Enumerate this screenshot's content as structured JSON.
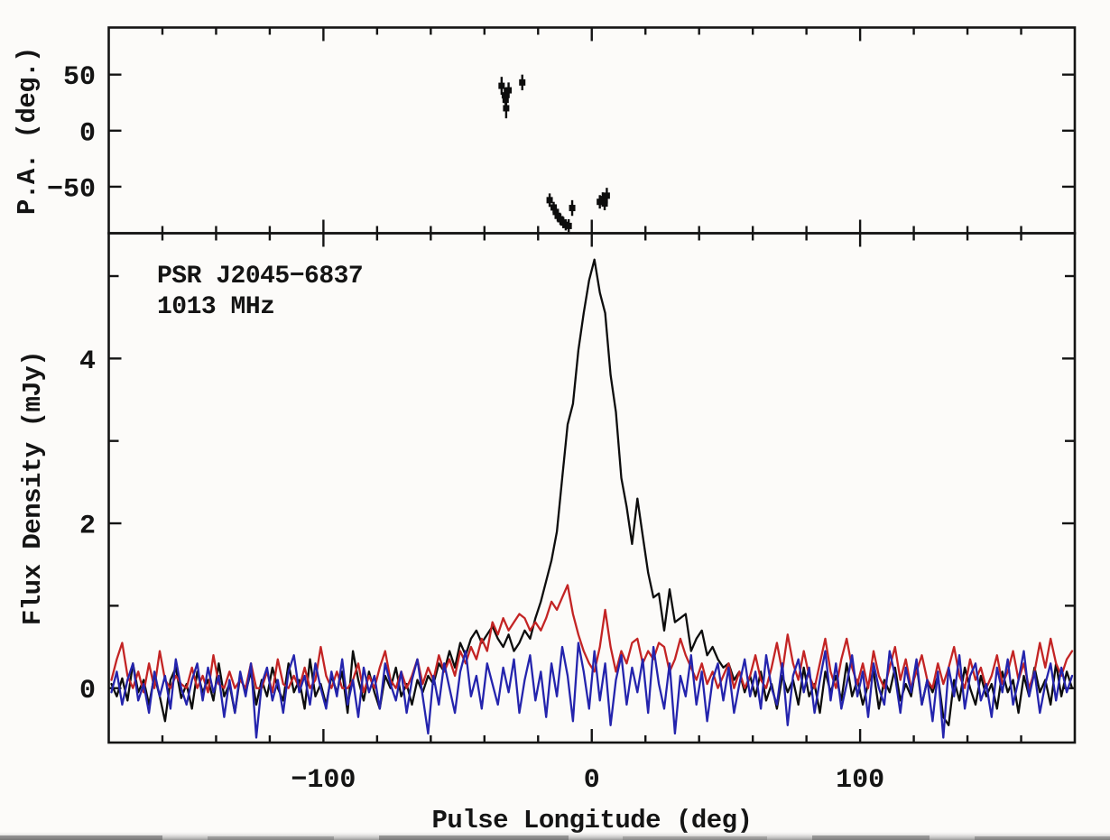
{
  "figure_title": "",
  "colors": {
    "frame": "#141414",
    "black_trace": "#0d0d0d",
    "red_trace": "#c32424",
    "blue_trace": "#2424ad",
    "background": "#fcfbf9",
    "scan_edge": "#8f8f8f"
  },
  "chart_data": [
    {
      "type": "scatter",
      "panel": "position-angle",
      "ylabel": "P.A. (deg.)",
      "xlim": [
        -180,
        180
      ],
      "ylim": [
        -91.5,
        92
      ],
      "y_ticks": [
        {
          "value": 50,
          "label": "50"
        },
        {
          "value": 0,
          "label": "0"
        },
        {
          "value": -50,
          "label": "−50"
        }
      ],
      "x_minor_step": 20,
      "x_major_ticks": [
        -100,
        0,
        100
      ],
      "marker": "filled-square-with-error-bar",
      "points": [
        {
          "x": -33.6,
          "pa": 40.0,
          "err": 8
        },
        {
          "x": -32.4,
          "pa": 31.5,
          "err": 7
        },
        {
          "x": -32.1,
          "pa": 27.5,
          "err": 8
        },
        {
          "x": -31.9,
          "pa": 20.0,
          "err": 9
        },
        {
          "x": -31.0,
          "pa": 36.0,
          "err": 7
        },
        {
          "x": -25.9,
          "pa": 43.0,
          "err": 7
        },
        {
          "x": -15.7,
          "pa": -62.0,
          "err": 6
        },
        {
          "x": -14.2,
          "pa": -68.5,
          "err": 5
        },
        {
          "x": -13.4,
          "pa": -72.5,
          "err": 5
        },
        {
          "x": -12.7,
          "pa": -76.0,
          "err": 5
        },
        {
          "x": -11.7,
          "pa": -79.0,
          "err": 5
        },
        {
          "x": -10.6,
          "pa": -82.0,
          "err": 5
        },
        {
          "x": -9.7,
          "pa": -84.0,
          "err": 5
        },
        {
          "x": -8.6,
          "pa": -85.0,
          "err": 6
        },
        {
          "x": -7.3,
          "pa": -69.0,
          "err": 7
        },
        {
          "x": 3.0,
          "pa": -63.5,
          "err": 6
        },
        {
          "x": 4.1,
          "pa": -61.0,
          "err": 6
        },
        {
          "x": 4.8,
          "pa": -65.0,
          "err": 6
        },
        {
          "x": 5.6,
          "pa": -58.0,
          "err": 7
        }
      ]
    },
    {
      "type": "line",
      "panel": "pulse-profile",
      "xlabel": "Pulse Longitude (deg)",
      "ylabel": "Flux Density (mJy)",
      "annotations": [
        "PSR J2045−6837",
        "1013 MHz"
      ],
      "xlim": [
        -180,
        180
      ],
      "ylim": [
        -0.66,
        5.52
      ],
      "x_major_ticks": [
        {
          "value": -100,
          "label": "−100"
        },
        {
          "value": 0,
          "label": "0"
        },
        {
          "value": 100,
          "label": "100"
        }
      ],
      "x_minor_step": 20,
      "y_ticks": [
        0,
        1,
        2,
        3,
        4,
        5
      ],
      "y_labeled_ticks": [
        {
          "value": 0,
          "label": "0"
        },
        {
          "value": 2,
          "label": "2"
        },
        {
          "value": 4,
          "label": "4"
        }
      ],
      "x_start": -179,
      "x_step": 2,
      "peak_flux_mjy": 5.2,
      "series": [
        {
          "name": "black",
          "color": "#0d0d0d",
          "y": [
            0.05,
            -0.1,
            0.12,
            -0.15,
            0.3,
            -0.05,
            0.1,
            -0.2,
            0.15,
            -0.1,
            -0.4,
            0.1,
            0.25,
            -0.12,
            0.05,
            -0.25,
            0.2,
            -0.05,
            0.1,
            -0.15,
            0.3,
            -0.1,
            0.05,
            -0.3,
            0.15,
            -0.05,
            0.2,
            -0.2,
            0.1,
            -0.1,
            0.25,
            0,
            -0.15,
            0.3,
            -0.05,
            0.1,
            -0.25,
            0.35,
            -0.1,
            0.05,
            -0.2,
            0.15,
            -0.05,
            0.2,
            -0.3,
            0.45,
            0.1,
            -0.15,
            0.2,
            -0.05,
            -0.25,
            0.15,
            0,
            0.25,
            -0.1,
            0.05,
            -0.2,
            0.1,
            -0.05,
            0.15,
            0.05,
            0.3,
            0.2,
            0.45,
            0.25,
            0.55,
            0.4,
            0.6,
            0.7,
            0.55,
            0.65,
            0.75,
            0.6,
            0.5,
            0.65,
            0.45,
            0.55,
            0.7,
            0.6,
            0.85,
            1.05,
            1.3,
            1.55,
            1.9,
            2.55,
            3.2,
            3.45,
            4.1,
            4.55,
            4.95,
            5.2,
            4.8,
            4.55,
            3.8,
            3.35,
            2.55,
            2.2,
            1.75,
            2.3,
            1.85,
            1.4,
            1.1,
            1.15,
            0.7,
            1.2,
            0.8,
            0.85,
            0.9,
            0.45,
            0.6,
            0.7,
            0.4,
            0.5,
            0.35,
            0.25,
            0.3,
            0.1,
            0.2,
            -0.05,
            0.15,
            -0.1,
            0.2,
            -0.15,
            0.05,
            -0.25,
            0.15,
            -0.05,
            0.1,
            -0.2,
            0.25,
            -0.1,
            0.05,
            -0.3,
            0.2,
            -0.05,
            0.15,
            -0.15,
            0.3,
            -0.1,
            0.1,
            -0.2,
            0.05,
            0.2,
            -0.25,
            0.1,
            -0.05,
            0.25,
            -0.15,
            0.05,
            -0.1,
            0.3,
            -0.2,
            0.1,
            -0.05,
            0.15,
            -0.35,
            -0.45,
            0.1,
            -0.15,
            0.25,
            0,
            -0.2,
            0.15,
            -0.1,
            0.05,
            -0.25,
            0.2,
            -0.05,
            0.1,
            -0.3,
            0.15,
            -0.1,
            0.25,
            -0.05,
            0.1,
            -0.2,
            0.3,
            -0.1,
            0.2,
            0
          ]
        },
        {
          "name": "red",
          "color": "#c32424",
          "y": [
            0.1,
            0.35,
            0.55,
            0.15,
            0,
            0.2,
            -0.05,
            0.3,
            0,
            0.45,
            0.1,
            0,
            0.15,
            0.05,
            0,
            0.25,
            0,
            0.15,
            -0.05,
            0.4,
            0.05,
            0,
            0.2,
            0,
            0.1,
            0,
            0.3,
            0,
            0,
            0.2,
            -0.05,
            0.35,
            0.05,
            0,
            0.15,
            0,
            0.25,
            0,
            0.1,
            0.5,
            0.15,
            0,
            0.2,
            0,
            0,
            0.1,
            0.3,
            -0.05,
            0.15,
            0,
            0.25,
            0.45,
            0.1,
            0,
            0.2,
            0,
            0.15,
            0.35,
            0.05,
            0.25,
            0.1,
            0.4,
            0.2,
            0.35,
            0.15,
            0.45,
            0.3,
            0.5,
            0.35,
            0.6,
            0.45,
            0.8,
            0.65,
            0.85,
            0.7,
            0.8,
            0.9,
            0.85,
            0.7,
            0.8,
            0.7,
            0.85,
            1.05,
            0.95,
            1.1,
            1.25,
            0.9,
            0.65,
            0.45,
            0.3,
            0.2,
            0.5,
            0.95,
            0.5,
            0.2,
            0.45,
            0.3,
            0.55,
            0.6,
            0.3,
            0.45,
            0.35,
            0.55,
            0.5,
            0.2,
            0.35,
            0.6,
            0.4,
            0.25,
            0.1,
            0.3,
            0.05,
            0.2,
            0,
            0.15,
            0.3,
            0,
            0.2,
            0,
            0.15,
            0.4,
            0.1,
            0,
            0.25,
            0.55,
            0.2,
            0.65,
            0.3,
            0.1,
            0.45,
            0.15,
            0,
            0.3,
            0.6,
            0.2,
            0,
            0.35,
            0.6,
            0.25,
            0.05,
            0.3,
            0,
            0.45,
            0.15,
            0,
            0.25,
            0.5,
            0.1,
            0.35,
            0,
            0.2,
            0.4,
            0.1,
            0,
            0.3,
            0.05,
            0.25,
            0.5,
            0.15,
            0,
            0.35,
            0.1,
            0.25,
            0,
            0.15,
            0.4,
            0.05,
            0.2,
            0.45,
            0.1,
            0.3,
            0,
            0.2,
            0.55,
            0.25,
            0.6,
            0.3,
            0.15,
            0.35,
            0.45
          ]
        },
        {
          "name": "blue",
          "color": "#2424ad",
          "y": [
            -0.05,
            0.2,
            -0.2,
            0.1,
            0.3,
            -0.15,
            0.05,
            -0.3,
            0.2,
            -0.1,
            0.15,
            -0.25,
            0.35,
            0,
            -0.2,
            0.1,
            0.3,
            -0.15,
            0.25,
            -0.05,
            0.15,
            -0.35,
            0.1,
            -0.3,
            0.2,
            -0.1,
            0.3,
            -0.6,
            0.05,
            0.25,
            -0.15,
            0.1,
            -0.3,
            0.2,
            0.4,
            -0.05,
            0.15,
            -0.2,
            0.3,
            0,
            -0.25,
            0.2,
            -0.1,
            0.35,
            -0.2,
            0.1,
            -0.35,
            0.25,
            -0.05,
            0.15,
            -0.25,
            0.3,
            0.05,
            -0.15,
            0.2,
            -0.3,
            0.1,
            0.35,
            -0.1,
            -0.55,
            0.15,
            -0.2,
            0.3,
            0,
            -0.3,
            0.2,
            0.45,
            -0.1,
            0.15,
            -0.25,
            0.3,
            0.05,
            -0.2,
            0.25,
            -0.05,
            0.35,
            -0.3,
            0.1,
            0.4,
            -0.15,
            0.2,
            -0.35,
            0.3,
            -0.1,
            0.5,
            0.15,
            -0.4,
            0.55,
            0.2,
            -0.25,
            0.45,
            -0.15,
            0.3,
            -0.45,
            0.1,
            0.4,
            -0.2,
            0.25,
            -0.05,
            0.35,
            -0.3,
            0.5,
            0.05,
            -0.25,
            0.3,
            -0.55,
            0.15,
            -0.1,
            0.4,
            -0.2,
            0.2,
            -0.4,
            0.1,
            0.3,
            -0.15,
            0.25,
            -0.3,
            0.05,
            0.35,
            -0.1,
            0.2,
            -0.25,
            0.4,
            0,
            -0.2,
            0.3,
            -0.45,
            0.15,
            0.35,
            -0.05,
            0.25,
            -0.3,
            0.1,
            0.45,
            -0.15,
            0.3,
            -0.25,
            0.05,
            0.4,
            -0.1,
            0.2,
            -0.35,
            0.3,
            0,
            -0.2,
            0.45,
            0.15,
            -0.3,
            0.25,
            -0.05,
            0.35,
            -0.2,
            0.1,
            -0.4,
            0.2,
            -0.6,
            0.25,
            -0.1,
            0.4,
            -0.25,
            0.15,
            0.3,
            -0.15,
            0.05,
            -0.35,
            0.25,
            -0.05,
            0.35,
            -0.2,
            0.1,
            0.45,
            -0.1,
            0.2,
            -0.3,
            0.05,
            0.3,
            -0.15,
            0.25,
            -0.05,
            0.15
          ]
        }
      ]
    }
  ]
}
